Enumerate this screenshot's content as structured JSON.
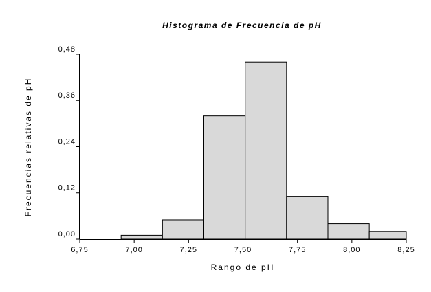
{
  "chart_data": {
    "type": "histogram",
    "title": "Histograma de Frecuencia de pH",
    "x_label": "Rango de pH",
    "y_label": "Frecuencias relativas de pH",
    "bins": [
      6.94,
      7.13,
      7.32,
      7.51,
      7.7,
      7.89,
      8.08,
      8.25
    ],
    "values": [
      0.01,
      0.05,
      0.32,
      0.46,
      0.11,
      0.04,
      0.02
    ],
    "color": "#d9d9d9",
    "xlim": [
      6.75,
      8.25
    ],
    "xticks": [
      {
        "value": 6.75,
        "label": "6,75"
      },
      {
        "value": 7.0,
        "label": "7,00"
      },
      {
        "value": 7.25,
        "label": "7,25"
      },
      {
        "value": 7.5,
        "label": "7,50"
      },
      {
        "value": 7.75,
        "label": "7,75"
      },
      {
        "value": 8.0,
        "label": "8,00"
      },
      {
        "value": 8.25,
        "label": "8,25"
      }
    ],
    "ylim": [
      0,
      0.48
    ],
    "yticks": [
      {
        "value": 0,
        "label": "0,00"
      },
      {
        "value": 0.12,
        "label": "0,12"
      },
      {
        "value": 0.24,
        "label": "0,24"
      },
      {
        "value": 0.36,
        "label": "0,36"
      },
      {
        "value": 0.48,
        "label": "0,48"
      }
    ],
    "grid": false
  }
}
